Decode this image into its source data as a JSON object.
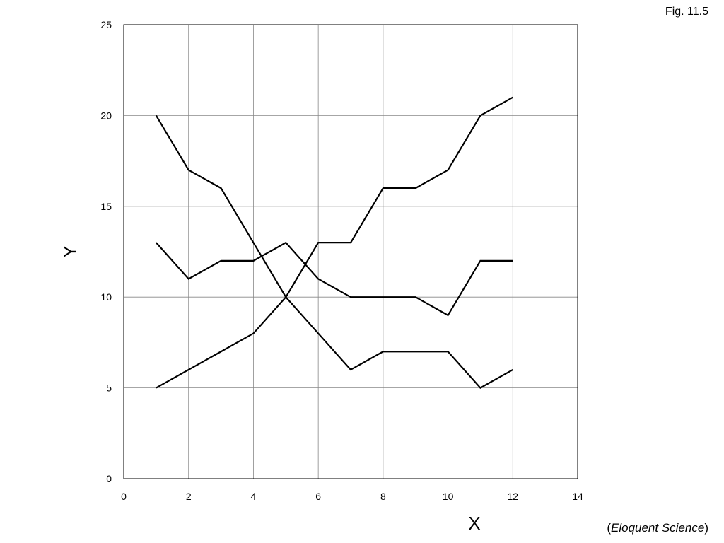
{
  "figure_label": "Fig. 11.5",
  "credit": {
    "open": "(",
    "source": "Eloquent Science",
    "close": ")"
  },
  "chart_data": {
    "type": "line",
    "xlabel": "X",
    "ylabel": "Y",
    "xlim": [
      0,
      14
    ],
    "ylim": [
      0,
      25
    ],
    "xticks": [
      0,
      2,
      4,
      6,
      8,
      10,
      12,
      14
    ],
    "yticks": [
      0,
      5,
      10,
      15,
      20,
      25
    ],
    "grid": true,
    "line_color": "#000000",
    "grid_color": "#888888",
    "x": [
      1,
      2,
      3,
      4,
      5,
      6,
      7,
      8,
      9,
      10,
      11,
      12
    ],
    "series": [
      {
        "values": [
          20,
          17,
          16,
          13,
          10,
          8,
          6,
          7,
          7,
          7,
          5,
          6
        ]
      },
      {
        "values": [
          13,
          11,
          12,
          12,
          13,
          11,
          10,
          10,
          10,
          9,
          12,
          12
        ]
      },
      {
        "values": [
          5,
          6,
          7,
          8,
          10,
          13,
          13,
          16,
          16,
          17,
          20,
          21
        ]
      }
    ]
  }
}
